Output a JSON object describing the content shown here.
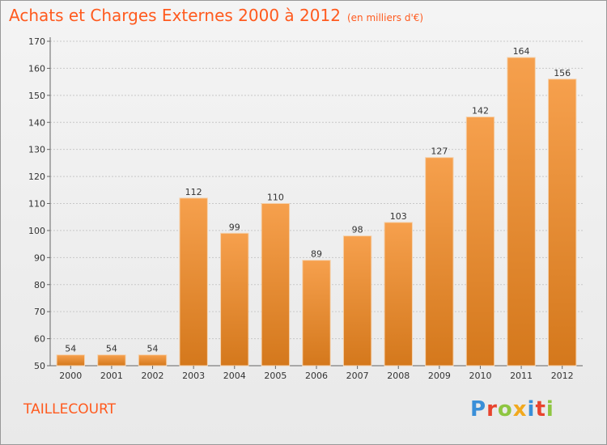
{
  "header": {
    "title": "Achats et Charges Externes 2000 à 2012",
    "unit": "(en milliers d'€)"
  },
  "footer": {
    "commune": "TAILLECOURT",
    "logo_text": "Proxiti",
    "logo_colors": [
      "#3a8fd8",
      "#e8442e",
      "#8ec641",
      "#f2a91e",
      "#3a8fd8",
      "#e8442e",
      "#8ec641"
    ]
  },
  "colors": {
    "bar_top": "#f6a04d",
    "bar_bottom": "#d4781c",
    "grid": "#c8c8c8",
    "text": "#333333",
    "accent": "#ff5a1e"
  },
  "chart_data": {
    "type": "bar",
    "categories": [
      "2000",
      "2001",
      "2002",
      "2003",
      "2004",
      "2005",
      "2006",
      "2007",
      "2008",
      "2009",
      "2010",
      "2011",
      "2012"
    ],
    "values": [
      54,
      54,
      54,
      112,
      99,
      110,
      89,
      98,
      103,
      127,
      142,
      164,
      156
    ],
    "ylim": [
      50,
      170
    ],
    "yticks": [
      50,
      60,
      70,
      80,
      90,
      100,
      110,
      120,
      130,
      140,
      150,
      160,
      170
    ],
    "grid": true,
    "data_labels": true
  }
}
